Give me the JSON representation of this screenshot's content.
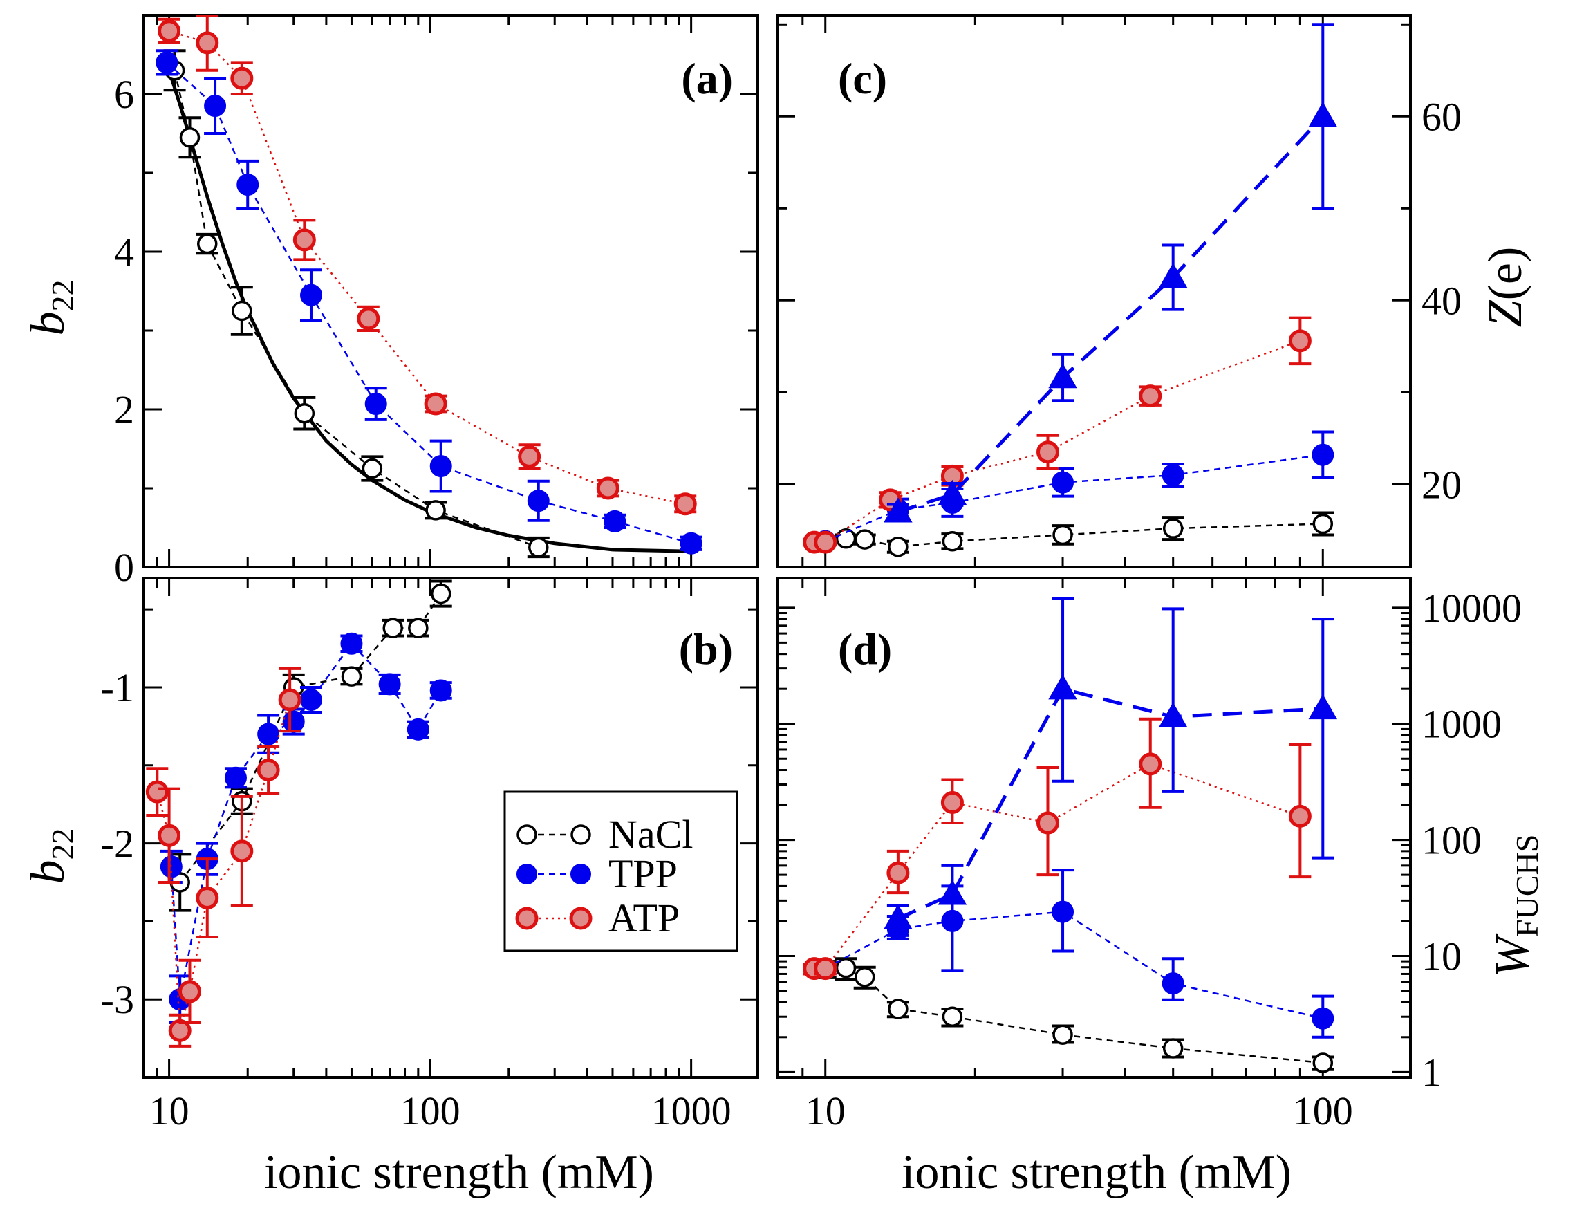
{
  "figure": {
    "x_axis_label": "ionic strength (mM)",
    "legend": [
      {
        "label": "NaCl",
        "color": "#000000",
        "fill": "none"
      },
      {
        "label": "TPP",
        "color": "#0000ee",
        "fill": "#0000ee"
      },
      {
        "label": "ATP",
        "color": "#dd1111",
        "fill": "#e08a8a"
      }
    ],
    "colors": {
      "NaCl": "#000000",
      "TPP": "#0000ee",
      "ATP": "#dd1111",
      "ATP_fill": "#e08a8a",
      "frame": "#000000"
    }
  },
  "chart_data": [
    {
      "id": "a",
      "type": "scatter",
      "panel_label": "(a)",
      "xlabel": "",
      "ylabel": "b",
      "ylabel_sub": "22",
      "xscale": "log",
      "xlim": [
        8,
        1800
      ],
      "ylim": [
        0,
        7
      ],
      "grid": false,
      "x_ticks": [
        10,
        100,
        1000
      ],
      "x_tick_labels": [
        "",
        "",
        ""
      ],
      "y_ticks": [
        0,
        2,
        4,
        6
      ],
      "y_tick_labels": [
        "0",
        "2",
        "4",
        "6"
      ],
      "series": [
        {
          "name": "NaCl",
          "marker": "open-circle",
          "dash": "dashed",
          "x": [
            10.5,
            12,
            14,
            19,
            33,
            60,
            105,
            260
          ],
          "y": [
            6.3,
            5.45,
            4.1,
            3.25,
            1.95,
            1.25,
            0.72,
            0.25
          ],
          "err": [
            0.25,
            0.25,
            0.12,
            0.3,
            0.2,
            0.15,
            0.1,
            0.12
          ]
        },
        {
          "name": "TPP",
          "marker": "filled-circle",
          "dash": "dashed",
          "x": [
            9.8,
            15,
            20,
            35,
            62,
            110,
            260,
            510,
            1000
          ],
          "y": [
            6.4,
            5.85,
            4.85,
            3.45,
            2.07,
            1.28,
            0.84,
            0.58,
            0.3
          ],
          "err": [
            0.15,
            0.35,
            0.3,
            0.32,
            0.2,
            0.32,
            0.25,
            0.08,
            0.08
          ]
        },
        {
          "name": "ATP",
          "marker": "dotted-circle",
          "dash": "dotted",
          "x": [
            10,
            14,
            19,
            33,
            58,
            105,
            240,
            480,
            950
          ],
          "y": [
            6.8,
            6.65,
            6.2,
            4.15,
            3.15,
            2.07,
            1.4,
            1.0,
            0.8
          ],
          "err": [
            0.15,
            0.35,
            0.2,
            0.25,
            0.15,
            0.1,
            0.15,
            0.1,
            0.1
          ]
        },
        {
          "name": "NaCl fit",
          "marker": "none",
          "dash": "solid",
          "x": [
            10,
            11,
            12,
            14,
            16,
            18,
            20,
            25,
            30,
            40,
            50,
            60,
            80,
            100,
            150,
            200,
            300,
            500,
            1000
          ],
          "y": [
            6.3,
            5.87,
            5.45,
            4.7,
            4.1,
            3.62,
            3.25,
            2.58,
            2.14,
            1.6,
            1.3,
            1.1,
            0.85,
            0.7,
            0.5,
            0.4,
            0.3,
            0.22,
            0.2
          ]
        }
      ]
    },
    {
      "id": "b",
      "type": "scatter",
      "panel_label": "(b)",
      "xlabel": "ionic strength (mM)",
      "ylabel": "b",
      "ylabel_sub": "22",
      "xscale": "log",
      "xlim": [
        8,
        1800
      ],
      "ylim": [
        -3.5,
        -0.3
      ],
      "grid": false,
      "x_ticks": [
        10,
        100,
        1000
      ],
      "x_tick_labels": [
        "10",
        "100",
        "1000"
      ],
      "y_ticks": [
        -3,
        -2,
        -1
      ],
      "y_tick_labels": [
        "-3",
        "-2",
        "-1"
      ],
      "series": [
        {
          "name": "NaCl",
          "marker": "open-circle",
          "dash": "dashed",
          "x": [
            11,
            19,
            30,
            50,
            72,
            90,
            110
          ],
          "y": [
            -2.25,
            -1.73,
            -1.0,
            -0.93,
            -0.62,
            -0.62,
            -0.4
          ],
          "err": [
            0.18,
            0.08,
            0.08,
            0.05,
            0.05,
            0.05,
            0.08
          ]
        },
        {
          "name": "TPP",
          "marker": "filled-circle",
          "dash": "dashed",
          "x": [
            10.2,
            11,
            14,
            18,
            24,
            30,
            35,
            50,
            70,
            90,
            110
          ],
          "y": [
            -2.15,
            -3.0,
            -2.1,
            -1.58,
            -1.3,
            -1.22,
            -1.08,
            -0.72,
            -0.98,
            -1.27,
            -1.02
          ],
          "err": [
            0.1,
            0.15,
            0.1,
            0.06,
            0.12,
            0.08,
            0.08,
            0.05,
            0.06,
            0.05,
            0.05
          ]
        },
        {
          "name": "ATP",
          "marker": "dotted-circle",
          "dash": "dotted",
          "x": [
            9,
            10,
            11,
            12,
            14,
            19,
            24,
            29
          ],
          "y": [
            -1.67,
            -1.95,
            -3.2,
            -2.95,
            -2.35,
            -2.05,
            -1.53,
            -1.08
          ],
          "err": [
            0.15,
            0.3,
            0.1,
            0.2,
            0.25,
            0.35,
            0.15,
            0.2
          ]
        }
      ]
    },
    {
      "id": "c",
      "type": "scatter",
      "panel_label": "(c)",
      "xlabel": "",
      "ylabel": "Z",
      "ylabel_suffix": "(e)",
      "xscale": "log",
      "xlim": [
        8,
        150
      ],
      "ylim": [
        11,
        71
      ],
      "grid": false,
      "x_ticks": [
        10,
        100
      ],
      "x_tick_labels": [
        "",
        ""
      ],
      "y_ticks": [
        20,
        40,
        60
      ],
      "y_tick_labels": [
        "20",
        "40",
        "60"
      ],
      "series": [
        {
          "name": "NaCl",
          "marker": "open-circle",
          "dash": "dashed",
          "x": [
            10,
            11,
            12,
            14,
            18,
            30,
            50,
            100
          ],
          "y": [
            13.7,
            14.1,
            14.0,
            13.2,
            13.8,
            14.5,
            15.2,
            15.7
          ],
          "err": [
            0.3,
            0.4,
            0.5,
            0.6,
            0.8,
            1.0,
            1.2,
            1.2
          ]
        },
        {
          "name": "TPP",
          "marker": "filled-circle",
          "dash": "dashed",
          "x": [
            10,
            14,
            18,
            30,
            50,
            100
          ],
          "y": [
            13.8,
            17.2,
            18.0,
            20.2,
            21.0,
            23.2
          ],
          "err": [
            0.3,
            1.2,
            1.5,
            1.5,
            1.2,
            2.5
          ]
        },
        {
          "name": "ATP",
          "marker": "dotted-circle",
          "dash": "dotted",
          "x": [
            9.5,
            10,
            13.5,
            18,
            28,
            45,
            90
          ],
          "y": [
            13.7,
            13.7,
            18.3,
            20.9,
            23.5,
            29.6,
            35.6
          ],
          "err": [
            0.3,
            0.3,
            0.8,
            1.0,
            1.8,
            1.0,
            2.5
          ]
        },
        {
          "name": "TPP Z",
          "marker": "filled-triangle",
          "dash": "long-dashed",
          "x": [
            14,
            18,
            30,
            50,
            100
          ],
          "y": [
            17.0,
            18.9,
            31.6,
            42.5,
            60.0
          ],
          "err": [
            0.8,
            1.2,
            2.5,
            3.5,
            10.0
          ]
        }
      ]
    },
    {
      "id": "d",
      "type": "scatter",
      "panel_label": "(d)",
      "xlabel": "ionic strength (mM)",
      "ylabel": "W",
      "ylabel_sub": "FUCHS",
      "xscale": "log",
      "yscale": "log",
      "xlim": [
        8,
        150
      ],
      "ylim": [
        0.9,
        18000
      ],
      "grid": false,
      "x_ticks": [
        10,
        100
      ],
      "x_tick_labels": [
        "10",
        "100"
      ],
      "y_ticks": [
        1,
        10,
        100,
        1000,
        10000
      ],
      "y_tick_labels": [
        "1",
        "10",
        "100",
        "1000",
        "10000"
      ],
      "series": [
        {
          "name": "NaCl",
          "marker": "open-circle",
          "dash": "dashed",
          "x": [
            10,
            11,
            12,
            14,
            18,
            30,
            50,
            100
          ],
          "y": [
            7.8,
            7.9,
            6.6,
            3.5,
            3.0,
            2.1,
            1.6,
            1.2
          ],
          "low": [
            6.5,
            6.3,
            5.3,
            3.0,
            2.5,
            1.8,
            1.35,
            1.05
          ],
          "high": [
            9.0,
            9.5,
            8.0,
            4.0,
            3.5,
            2.5,
            1.9,
            1.35
          ]
        },
        {
          "name": "TPP",
          "marker": "filled-circle",
          "dash": "dashed",
          "x": [
            10,
            14,
            18,
            30,
            50,
            100
          ],
          "y": [
            7.8,
            17.0,
            20.0,
            24.0,
            5.8,
            2.9
          ],
          "low": [
            7.0,
            14.0,
            7.5,
            11.0,
            4.2,
            2.0
          ],
          "high": [
            8.5,
            22.0,
            40.0,
            55.0,
            9.5,
            4.5
          ]
        },
        {
          "name": "ATP",
          "marker": "dotted-circle",
          "dash": "dotted",
          "x": [
            9.5,
            10,
            14,
            18,
            28,
            45,
            90
          ],
          "y": [
            7.8,
            7.8,
            52.0,
            210.0,
            140.0,
            450.0,
            160.0
          ],
          "low": [
            7.0,
            7.0,
            35.0,
            140.0,
            50.0,
            190.0,
            48.0
          ],
          "high": [
            8.5,
            8.5,
            80.0,
            330.0,
            420.0,
            1100.0,
            660.0
          ]
        },
        {
          "name": "TPP W",
          "marker": "filled-triangle",
          "dash": "long-dashed",
          "x": [
            14,
            18,
            30,
            50,
            100
          ],
          "y": [
            21.0,
            34.0,
            2000.0,
            1150.0,
            1350.0
          ],
          "low": [
            15.0,
            20.0,
            320.0,
            260.0,
            70.0
          ],
          "high": [
            27.0,
            60.0,
            12000.0,
            9800.0,
            8000.0
          ]
        }
      ]
    }
  ]
}
